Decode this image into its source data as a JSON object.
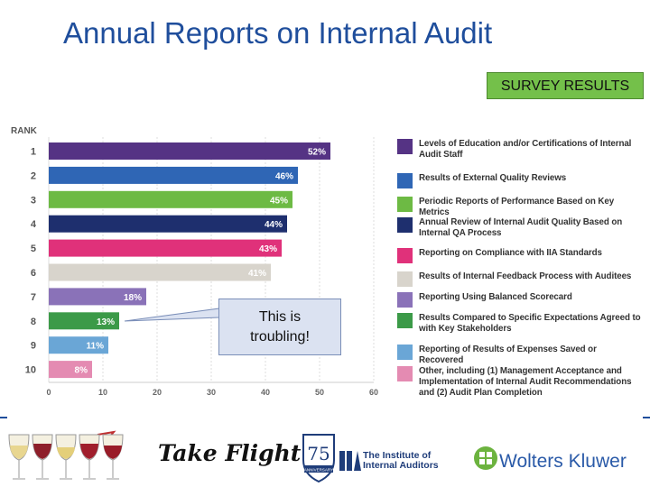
{
  "title": "Annual Reports on Internal Audit",
  "badge": "SURVEY RESULTS",
  "callout": {
    "line1": "This is",
    "line2": "troubling!"
  },
  "chart_data": {
    "type": "bar",
    "orientation": "horizontal",
    "rank_label": "RANK",
    "categories": [
      "1",
      "2",
      "3",
      "4",
      "5",
      "6",
      "7",
      "8",
      "9",
      "10"
    ],
    "values": [
      52,
      46,
      45,
      44,
      43,
      41,
      18,
      13,
      11,
      8
    ],
    "value_labels": [
      "52%",
      "46%",
      "45%",
      "44%",
      "43%",
      "41%",
      "18%",
      "13%",
      "11%",
      "8%"
    ],
    "colors": [
      "#553384",
      "#2f66b5",
      "#6dba44",
      "#1e2f6e",
      "#e0317a",
      "#d8d4cc",
      "#8a72b8",
      "#3c9a48",
      "#6aa6d6",
      "#e48bb2"
    ],
    "legend": [
      "Levels of Education and/or Certifications of Internal Audit Staff",
      "Results of External Quality Reviews",
      "Periodic Reports of Performance Based on Key Metrics",
      "Annual Review of Internal Audit Quality Based on Internal QA Process",
      "Reporting on Compliance with IIA Standards",
      "Results of Internal Feedback Process with Auditees",
      "Reporting Using Balanced Scorecard",
      "Results Compared to Specific Expectations Agreed to with Key Stakeholders",
      "Reporting of Results of Expenses Saved or Recovered",
      "Other, including (1) Management Acceptance and Implementation of Internal Audit Recommendations and (2) Audit Plan Completion"
    ],
    "xticks": [
      0,
      10,
      20,
      30,
      40,
      50,
      60
    ],
    "xlim": [
      0,
      60
    ],
    "grid": true
  },
  "footer": {
    "take_flight": "Take Flight",
    "seal_number": "75",
    "seal_ribbon": "ANNIVERSARY",
    "iia_line1": "The Institute of",
    "iia_line2": "Internal Auditors",
    "wk": "Wolters Kluwer"
  },
  "colors": {
    "title": "#1f4e9c",
    "badge": "#74c04a",
    "wk_green": "#6cb33f"
  }
}
